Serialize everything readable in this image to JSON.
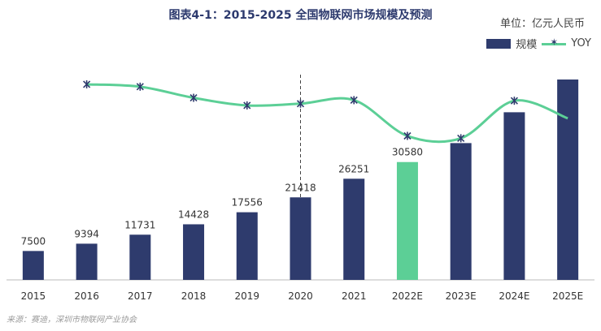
{
  "chart_data": {
    "type": "bar",
    "title": "图表4-1：2015-2025 全国物联网市场规模及预测",
    "unit": "单位：亿元人民币",
    "categories": [
      "2015",
      "2016",
      "2017",
      "2018",
      "2019",
      "2020",
      "2021",
      "2022E",
      "2023E",
      "2024E",
      "2025E"
    ],
    "series": [
      {
        "name": "规模",
        "values": [
          7500,
          9394,
          11731,
          14428,
          17556,
          21418,
          26251,
          30580,
          35500,
          43500,
          52000
        ],
        "labels": [
          "7500",
          "9394",
          "11731",
          "14428",
          "17556",
          "21418",
          "26251",
          "30580",
          "",
          "",
          ""
        ],
        "color": "#2e3b6d",
        "highlight_index": 7,
        "highlight_color": "#5ccf96"
      },
      {
        "name": "YOY",
        "type": "line",
        "values": [
          null,
          0.253,
          0.249,
          0.23,
          0.217,
          0.22,
          0.226,
          0.165,
          0.161,
          0.225,
          0.195
        ],
        "color": "#5ccf96",
        "marker_color": "#2e3b6d"
      }
    ],
    "ylim": [
      0,
      60000
    ],
    "divider_after_category": "2020",
    "source": "来源：赛迪，深圳市物联网产业协会"
  }
}
